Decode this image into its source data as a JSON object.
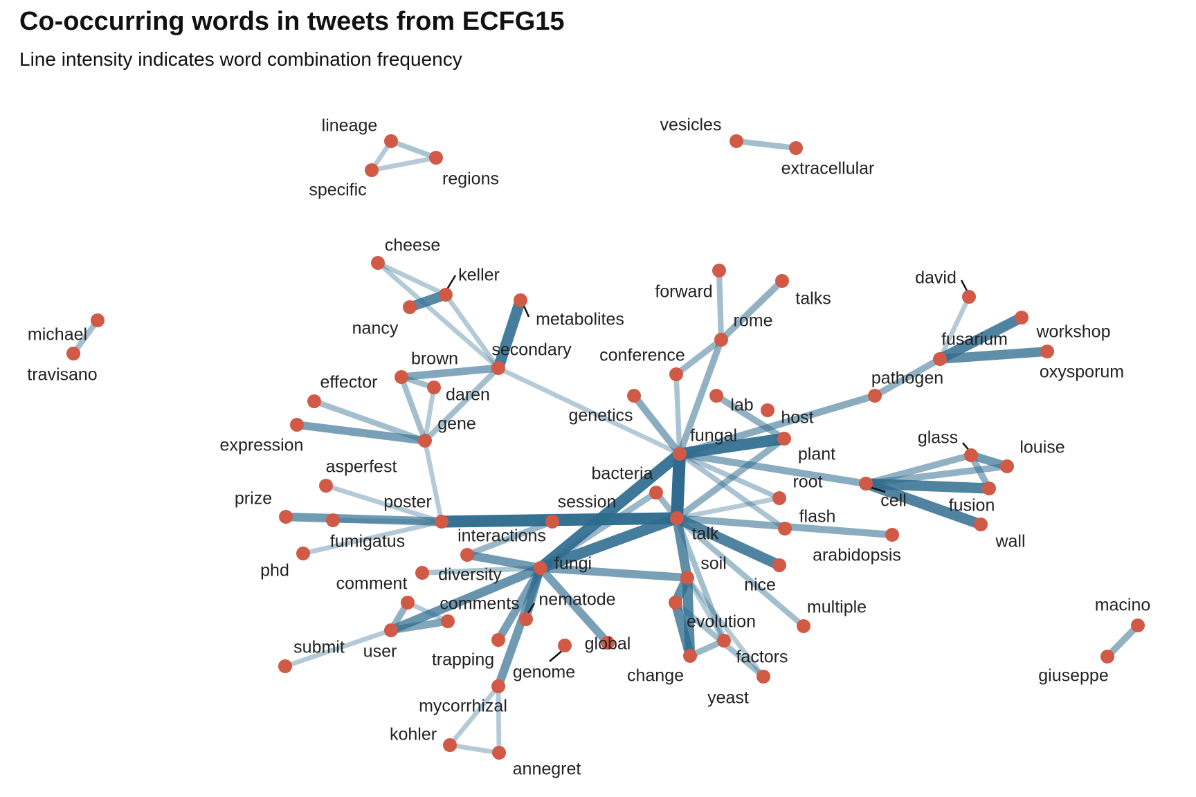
{
  "title": "Co-occurring words in tweets from ECFG15",
  "subtitle": "Line intensity indicates word combination frequency",
  "colors": {
    "node": "#d05a45",
    "edge": "#2e6b8e"
  },
  "chart_data": {
    "type": "network",
    "nodes": [
      "lineage",
      "specific",
      "regions",
      "vesicles",
      "extracellular",
      "cheese",
      "keller",
      "nancy",
      "metabolites",
      "secondary",
      "brown",
      "daren",
      "effector",
      "expression",
      "gene",
      "michael",
      "travisano",
      "forward",
      "rome",
      "talks",
      "conference",
      "genetics",
      "lab",
      "host",
      "fungal",
      "plant",
      "david",
      "workshop",
      "fusarium",
      "oxysporum",
      "pathogen",
      "glass",
      "louise",
      "cell",
      "fusion",
      "wall",
      "root",
      "flash",
      "arabidopsis",
      "asperfest",
      "prize",
      "fumigatus",
      "poster",
      "session",
      "interactions",
      "bacteria",
      "talk",
      "nice",
      "fungi",
      "diversity",
      "comment",
      "comments",
      "phd",
      "submit",
      "user",
      "trapping",
      "nematode",
      "genome",
      "global",
      "soil",
      "evolution",
      "change",
      "factors",
      "yeast",
      "multiple",
      "mycorrhizal",
      "kohler",
      "annegret",
      "macino",
      "giuseppe"
    ],
    "edges": [
      {
        "source": "talk",
        "target": "fungal",
        "weight": 1.0
      },
      {
        "source": "talk",
        "target": "poster",
        "weight": 0.95
      },
      {
        "source": "fungi",
        "target": "fungal",
        "weight": 0.9
      },
      {
        "source": "fungal",
        "target": "host",
        "weight": 0.9
      },
      {
        "source": "fungi",
        "target": "talk",
        "weight": 0.85
      },
      {
        "source": "secondary",
        "target": "metabolites",
        "weight": 0.85
      },
      {
        "source": "talk",
        "target": "nice",
        "weight": 0.8
      },
      {
        "source": "fusion",
        "target": "cell",
        "weight": 0.8
      },
      {
        "source": "cell",
        "target": "wall",
        "weight": 0.8
      },
      {
        "source": "fusarium",
        "target": "workshop",
        "weight": 0.8
      },
      {
        "source": "fusarium",
        "target": "oxysporum",
        "weight": 0.7
      },
      {
        "source": "soil",
        "target": "change",
        "weight": 0.75
      },
      {
        "source": "soil",
        "target": "evolution",
        "weight": 0.7
      },
      {
        "source": "evolution",
        "target": "change",
        "weight": 0.7
      },
      {
        "source": "talk",
        "target": "soil",
        "weight": 0.7
      },
      {
        "source": "fungi",
        "target": "user",
        "weight": 0.65
      },
      {
        "source": "fungi",
        "target": "mycorrhizal",
        "weight": 0.6
      },
      {
        "source": "keller",
        "target": "nancy",
        "weight": 0.75
      },
      {
        "source": "prize",
        "target": "poster",
        "weight": 0.6
      },
      {
        "source": "fungi",
        "target": "interactions",
        "weight": 0.6
      },
      {
        "source": "fungi",
        "target": "global",
        "weight": 0.55
      },
      {
        "source": "fungi",
        "target": "soil",
        "weight": 0.55
      },
      {
        "source": "fungi",
        "target": "nematode",
        "weight": 0.55
      },
      {
        "source": "fungi",
        "target": "trapping",
        "weight": 0.55
      },
      {
        "source": "glass",
        "target": "louise",
        "weight": 0.6
      },
      {
        "source": "gene",
        "target": "expression",
        "weight": 0.55
      },
      {
        "source": "secondary",
        "target": "brown",
        "weight": 0.5
      },
      {
        "source": "fungal",
        "target": "genetics",
        "weight": 0.45
      },
      {
        "source": "talk",
        "target": "arabidopsis",
        "weight": 0.45
      },
      {
        "source": "fungal",
        "target": "cell",
        "weight": 0.45
      },
      {
        "source": "fungal",
        "target": "pathogen",
        "weight": 0.45
      },
      {
        "source": "pathogen",
        "target": "fusarium",
        "weight": 0.4
      },
      {
        "source": "fungal",
        "target": "rome",
        "weight": 0.4
      },
      {
        "source": "rome",
        "target": "talks",
        "weight": 0.4
      },
      {
        "source": "rome",
        "target": "conference",
        "weight": 0.35
      },
      {
        "source": "host",
        "target": "lab",
        "weight": 0.4
      },
      {
        "source": "talk",
        "target": "host",
        "weight": 0.4
      },
      {
        "source": "comment",
        "target": "user",
        "weight": 0.4
      },
      {
        "source": "user",
        "target": "comments",
        "weight": 0.5
      },
      {
        "source": "louise",
        "target": "cell",
        "weight": 0.4
      },
      {
        "source": "glass",
        "target": "cell",
        "weight": 0.4
      },
      {
        "source": "glass",
        "target": "fusion",
        "weight": 0.4
      },
      {
        "source": "macino",
        "target": "giuseppe",
        "weight": 0.4
      },
      {
        "source": "interactions",
        "target": "session",
        "weight": 0.35
      },
      {
        "source": "talk",
        "target": "bacteria",
        "weight": 0.35
      },
      {
        "source": "fungi",
        "target": "bacteria",
        "weight": 0.35
      },
      {
        "source": "change",
        "target": "factors",
        "weight": 0.35
      },
      {
        "source": "talk",
        "target": "factors",
        "weight": 0.3
      },
      {
        "source": "evolution",
        "target": "yeast",
        "weight": 0.3
      },
      {
        "source": "talk",
        "target": "multiple",
        "weight": 0.3
      },
      {
        "source": "forward",
        "target": "rome",
        "weight": 0.3
      },
      {
        "source": "michael",
        "target": "travisano",
        "weight": 0.3
      },
      {
        "source": "fungal",
        "target": "root",
        "weight": 0.25
      },
      {
        "source": "fungal",
        "target": "flash",
        "weight": 0.25
      },
      {
        "source": "fungi",
        "target": "diversity",
        "weight": 0.25
      },
      {
        "source": "fungal",
        "target": "conference",
        "weight": 0.25
      },
      {
        "source": "talk",
        "target": "root",
        "weight": 0.2
      },
      {
        "source": "daren",
        "target": "brown",
        "weight": 0.3
      },
      {
        "source": "effector",
        "target": "gene",
        "weight": 0.3
      },
      {
        "source": "secondary",
        "target": "gene",
        "weight": 0.3
      },
      {
        "source": "brown",
        "target": "gene",
        "weight": 0.3
      },
      {
        "source": "lineage",
        "target": "regions",
        "weight": 0.25
      },
      {
        "source": "lineage",
        "target": "specific",
        "weight": 0.2
      },
      {
        "source": "specific",
        "target": "regions",
        "weight": 0.2
      },
      {
        "source": "vesicles",
        "target": "extracellular",
        "weight": 0.3
      },
      {
        "source": "cheese",
        "target": "keller",
        "weight": 0.2
      },
      {
        "source": "cheese",
        "target": "secondary",
        "weight": 0.2
      },
      {
        "source": "keller",
        "target": "secondary",
        "weight": 0.2
      },
      {
        "source": "secondary",
        "target": "fungal",
        "weight": 0.2
      },
      {
        "source": "daren",
        "target": "gene",
        "weight": 0.2
      },
      {
        "source": "gene",
        "target": "poster",
        "weight": 0.2
      },
      {
        "source": "asperfest",
        "target": "poster",
        "weight": 0.2
      },
      {
        "source": "fumigatus",
        "target": "poster",
        "weight": 0.2
      },
      {
        "source": "phd",
        "target": "poster",
        "weight": 0.2
      },
      {
        "source": "submit",
        "target": "user",
        "weight": 0.2
      },
      {
        "source": "comment",
        "target": "comments",
        "weight": 0.2
      },
      {
        "source": "mycorrhizal",
        "target": "kohler",
        "weight": 0.2
      },
      {
        "source": "mycorrhizal",
        "target": "annegret",
        "weight": 0.2
      },
      {
        "source": "kohler",
        "target": "annegret",
        "weight": 0.2
      },
      {
        "source": "david",
        "target": "fusarium",
        "weight": 0.2
      },
      {
        "source": "soil",
        "target": "yeast",
        "weight": 0.2
      },
      {
        "source": "soil",
        "target": "factors",
        "weight": 0.2
      }
    ]
  }
}
